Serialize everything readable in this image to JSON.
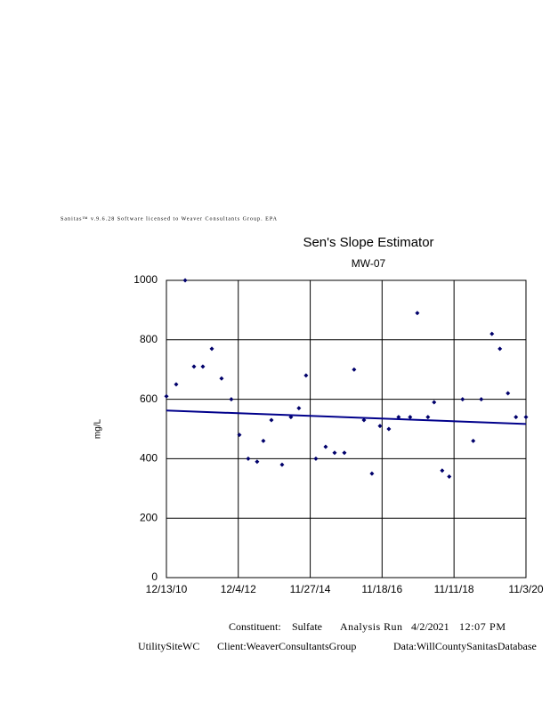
{
  "header": "Sanitas™ v.9.6.28 Software licensed to Weaver Consultants Group. EPA",
  "chart_data": {
    "type": "scatter",
    "title": "Sen's Slope Estimator",
    "subtitle": "MW-07",
    "y_label": "mg/L",
    "x": [
      "2010-12-13",
      "2011-03-21",
      "2011-06-19",
      "2011-09-16",
      "2011-12-14",
      "2012-03-13",
      "2012-06-19",
      "2012-09-25",
      "2012-12-15",
      "2013-03-14",
      "2013-06-11",
      "2013-08-13",
      "2013-11-02",
      "2014-02-17",
      "2014-05-17",
      "2014-08-05",
      "2014-10-16",
      "2015-01-23",
      "2015-05-01",
      "2015-07-30",
      "2015-11-05",
      "2016-02-11",
      "2016-05-20",
      "2016-08-08",
      "2016-10-28",
      "2017-01-25",
      "2017-05-03",
      "2017-08-27",
      "2017-11-07",
      "2018-02-22",
      "2018-04-25",
      "2018-07-15",
      "2018-09-24",
      "2019-02-05",
      "2019-05-23",
      "2019-08-12",
      "2019-11-27",
      "2020-02-15",
      "2020-05-06",
      "2020-07-25",
      "2020-11-03"
    ],
    "series": [
      {
        "color": "#00006b",
        "values": [
          610,
          650,
          1000,
          710,
          710,
          770,
          670,
          600,
          480,
          400,
          390,
          460,
          530,
          380,
          540,
          570,
          680,
          400,
          440,
          420,
          420,
          700,
          530,
          350,
          510,
          500,
          540,
          540,
          890,
          540,
          590,
          360,
          340,
          600,
          460,
          600,
          820,
          770,
          620,
          540,
          540
        ]
      }
    ],
    "trend": {
      "color": "#00008b",
      "x": [
        "2010-12-13",
        "2020-11-03"
      ],
      "values": [
        562,
        517
      ]
    },
    "xlim": [
      "2010-12-13",
      "2020-11-03"
    ],
    "xticks": [
      {
        "value": "2010-12-13",
        "label": "12/13/10"
      },
      {
        "value": "2012-12-04",
        "label": "12/4/12"
      },
      {
        "value": "2014-11-27",
        "label": "11/27/14"
      },
      {
        "value": "2016-11-18",
        "label": "11/18/16"
      },
      {
        "value": "2018-11-11",
        "label": "11/11/18"
      },
      {
        "value": "2020-11-03",
        "label": "11/3/20"
      }
    ],
    "ylim": [
      0,
      1000
    ],
    "yticks": [
      0,
      200,
      400,
      600,
      800,
      1000
    ],
    "grid": true
  },
  "footer": {
    "line1": [
      "Constituent:",
      "Sulfate",
      "Analysis Run",
      "4/2/2021",
      "12:07 PM"
    ],
    "line2": [
      "UtilitySiteWC",
      "Client:WeaverConsultantsGroup",
      "Data:WillCountySanitasDatabase"
    ]
  }
}
